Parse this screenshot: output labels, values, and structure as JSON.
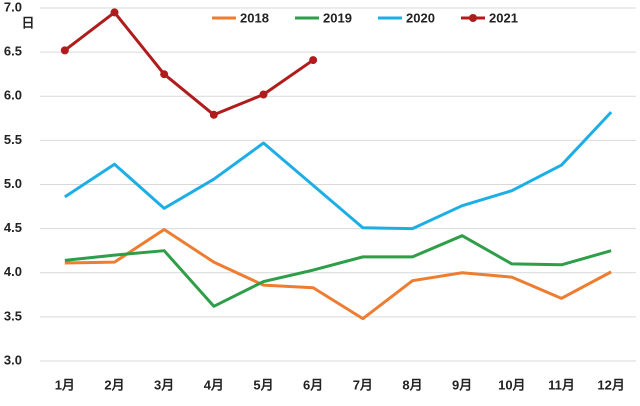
{
  "chart_data": {
    "type": "line",
    "y_label": "日",
    "categories": [
      "1月",
      "2月",
      "3月",
      "4月",
      "5月",
      "6月",
      "7月",
      "8月",
      "9月",
      "10月",
      "11月",
      "12月"
    ],
    "series": [
      {
        "name": "2018",
        "color": "#ed7d31",
        "values": [
          4.11,
          4.12,
          4.49,
          4.12,
          3.86,
          3.83,
          3.48,
          3.91,
          4.0,
          3.95,
          3.71,
          4.01
        ]
      },
      {
        "name": "2019",
        "color": "#2e9e48",
        "values": [
          4.14,
          4.2,
          4.25,
          3.62,
          3.9,
          4.03,
          4.18,
          4.18,
          4.42,
          4.1,
          4.09,
          4.25
        ]
      },
      {
        "name": "2020",
        "color": "#1eaee6",
        "values": [
          4.86,
          5.23,
          4.73,
          5.06,
          5.47,
          4.99,
          4.51,
          4.5,
          4.76,
          4.93,
          5.22,
          5.82
        ]
      },
      {
        "name": "2021",
        "color": "#b01c1c",
        "marker": "circle",
        "values": [
          6.52,
          6.95,
          6.25,
          5.79,
          6.02,
          6.41,
          null,
          null,
          null,
          null,
          null,
          null
        ]
      }
    ],
    "ylim": [
      3,
      7
    ],
    "yticks": [
      {
        "value": 3,
        "label": "3.0"
      },
      {
        "value": 3.5,
        "label": "3.5"
      },
      {
        "value": 4,
        "label": "4.0"
      },
      {
        "value": 4.5,
        "label": "4.5"
      },
      {
        "value": 5,
        "label": "5.0"
      },
      {
        "value": 5.5,
        "label": "5.5"
      },
      {
        "value": 6,
        "label": "6.0"
      },
      {
        "value": 6.5,
        "label": "6.5"
      },
      {
        "value": 7,
        "label": "7.0"
      }
    ],
    "grid": true,
    "legend": "top"
  }
}
